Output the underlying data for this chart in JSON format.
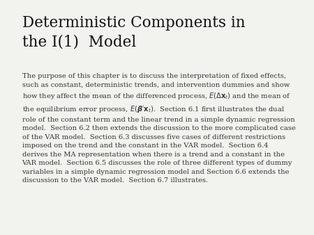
{
  "title_line1": "Deterministic Components in",
  "title_line2": "the I(1)  Model",
  "body": "The purpose of this chapter is to discuss the interpretation of fixed effects,\nsuch as constant, deterministic trends, and intervention dummies and show\nhow they affect the mean of the differenced process, $E(\\Delta\\mathbf{x}_t)$ and the mean of\nthe equilibrium error process, $E(\\boldsymbol{\\beta}'\\mathbf{x}_t)$.  Section 6.1 first illustrates the dual\nrole of the constant term and the linear trend in a simple dynamic regression\nmodel.  Section 6.2 then extends the discussion to the more complicated case\nof the VAR model.  Section 6.3 discusses five cases of different restrictions\nimposed on the trend and the constant in the VAR model.  Section 6.4\nderives the MA representation when there is a trend and a constant in the\nVAR model.  Section 6.5 discusses the role of three different types of dummy\nvariables in a simple dynamic regression model and Section 6.6 extends the\ndiscussion to the VAR model.  Section 6.7 illustrates.",
  "bg_color": "#f2f2ee",
  "title_fontsize": 15.5,
  "body_fontsize": 7.1,
  "title_color": "#111111",
  "body_color": "#333333",
  "fig_width": 4.5,
  "fig_height": 3.38,
  "dpi": 100
}
